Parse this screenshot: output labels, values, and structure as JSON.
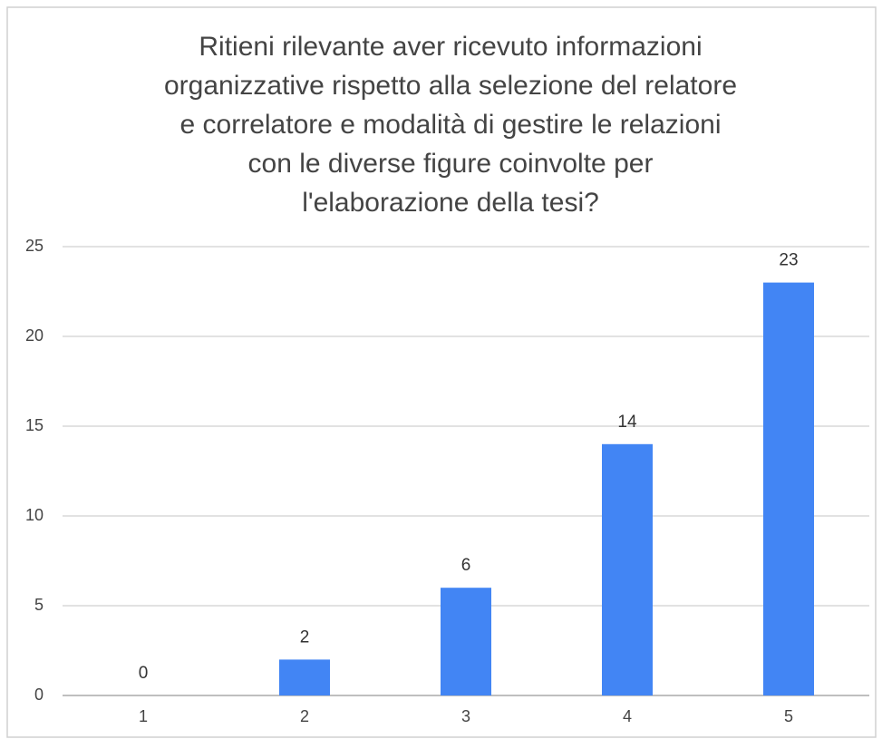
{
  "chart_data": {
    "type": "bar",
    "title": [
      "Ritieni rilevante aver ricevuto  informazioni",
      "organizzative rispetto alla selezione del relatore",
      "e correlatore e modalità di gestire le relazioni",
      "con le diverse figure coinvolte per",
      "l'elaborazione della tesi?"
    ],
    "categories": [
      "1",
      "2",
      "3",
      "4",
      "5"
    ],
    "values": [
      0,
      2,
      6,
      14,
      23
    ],
    "color": "#4285f4",
    "ylim": [
      0,
      25
    ],
    "yticks": [
      0,
      5,
      10,
      15,
      20,
      25
    ],
    "grid": true
  }
}
